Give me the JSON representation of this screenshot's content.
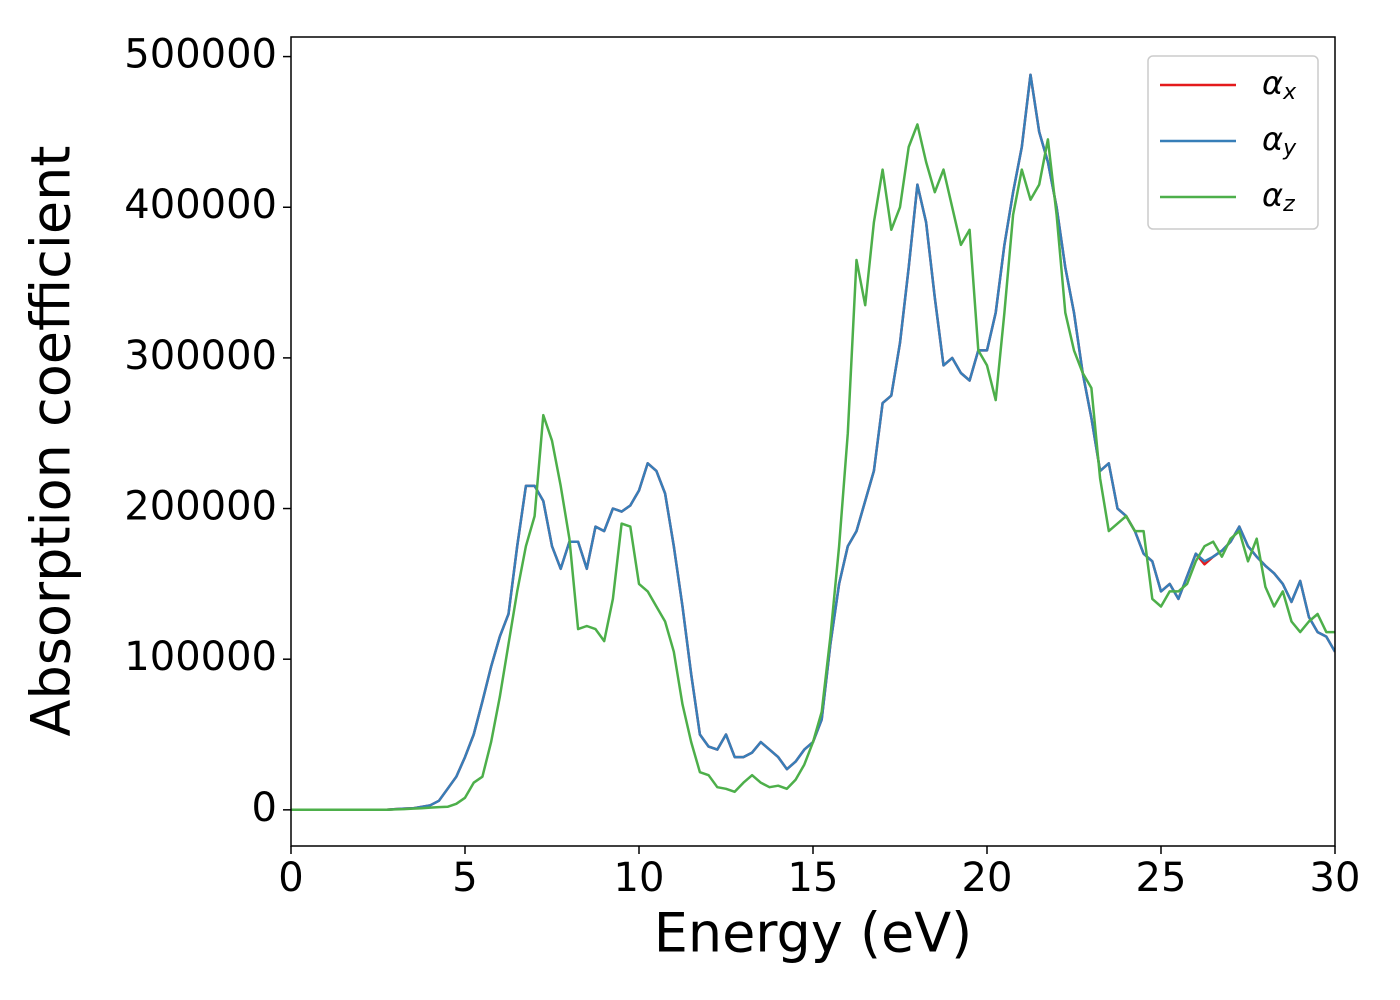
{
  "chart_data": {
    "type": "line",
    "xlabel": "Energy (eV)",
    "ylabel": "Absorption coefficient",
    "x": [
      0,
      0.25,
      0.5,
      0.75,
      1,
      1.25,
      1.5,
      1.75,
      2,
      2.25,
      2.5,
      2.75,
      3,
      3.25,
      3.5,
      3.75,
      4,
      4.25,
      4.5,
      4.75,
      5,
      5.25,
      5.5,
      5.75,
      6,
      6.25,
      6.5,
      6.75,
      7,
      7.25,
      7.5,
      7.75,
      8,
      8.25,
      8.5,
      8.75,
      9,
      9.25,
      9.5,
      9.75,
      10,
      10.25,
      10.5,
      10.75,
      11,
      11.25,
      11.5,
      11.75,
      12,
      12.25,
      12.5,
      12.75,
      13,
      13.25,
      13.5,
      13.75,
      14,
      14.25,
      14.5,
      14.75,
      15,
      15.25,
      15.5,
      15.75,
      16,
      16.25,
      16.5,
      16.75,
      17,
      17.25,
      17.5,
      17.75,
      18,
      18.25,
      18.5,
      18.75,
      19,
      19.25,
      19.5,
      19.75,
      20,
      20.25,
      20.5,
      20.75,
      21,
      21.25,
      21.5,
      21.75,
      22,
      22.25,
      22.5,
      22.75,
      23,
      23.25,
      23.5,
      23.75,
      24,
      24.25,
      24.5,
      24.75,
      25,
      25.25,
      25.5,
      25.75,
      26,
      26.25,
      26.5,
      26.75,
      27,
      27.25,
      27.5,
      27.75,
      28,
      28.25,
      28.5,
      28.75,
      29,
      29.25,
      29.5,
      29.75,
      30
    ],
    "series": [
      {
        "name": "αx",
        "color": "#e41a1c",
        "values": [
          0,
          0,
          0,
          0,
          0,
          0,
          0,
          0,
          0,
          0,
          0,
          0,
          500,
          800,
          1000,
          2000,
          3000,
          6000,
          14000,
          22000,
          35000,
          50000,
          72000,
          95000,
          115000,
          130000,
          175000,
          215000,
          215000,
          205000,
          175000,
          160000,
          178000,
          178000,
          160000,
          188000,
          185000,
          200000,
          198000,
          202000,
          212000,
          230000,
          225000,
          210000,
          175000,
          135000,
          90000,
          50000,
          42000,
          40000,
          50000,
          35000,
          35000,
          38000,
          45000,
          40000,
          35000,
          27000,
          32000,
          40000,
          45000,
          60000,
          110000,
          150000,
          175000,
          185000,
          205000,
          225000,
          270000,
          275000,
          310000,
          360000,
          415000,
          390000,
          340000,
          295000,
          300000,
          290000,
          285000,
          305000,
          305000,
          330000,
          375000,
          410000,
          440000,
          488000,
          450000,
          430000,
          400000,
          360000,
          330000,
          290000,
          260000,
          225000,
          230000,
          200000,
          195000,
          185000,
          170000,
          165000,
          145000,
          150000,
          140000,
          155000,
          170000,
          163000,
          168000,
          172000,
          178000,
          188000,
          175000,
          168000,
          162000,
          157000,
          150000,
          138000,
          152000,
          128000,
          118000,
          115000,
          105000
        ]
      },
      {
        "name": "αy",
        "color": "#377eb8",
        "values": [
          0,
          0,
          0,
          0,
          0,
          0,
          0,
          0,
          0,
          0,
          0,
          0,
          500,
          800,
          1000,
          2000,
          3000,
          6000,
          14000,
          22000,
          35000,
          50000,
          72000,
          95000,
          115000,
          130000,
          175000,
          215000,
          215000,
          205000,
          175000,
          160000,
          178000,
          178000,
          160000,
          188000,
          185000,
          200000,
          198000,
          202000,
          212000,
          230000,
          225000,
          210000,
          175000,
          135000,
          90000,
          50000,
          42000,
          40000,
          50000,
          35000,
          35000,
          38000,
          45000,
          40000,
          35000,
          27000,
          32000,
          40000,
          45000,
          60000,
          110000,
          150000,
          175000,
          185000,
          205000,
          225000,
          270000,
          275000,
          310000,
          360000,
          415000,
          390000,
          340000,
          295000,
          300000,
          290000,
          285000,
          305000,
          305000,
          330000,
          375000,
          410000,
          440000,
          488000,
          450000,
          430000,
          400000,
          360000,
          330000,
          290000,
          260000,
          225000,
          230000,
          200000,
          195000,
          185000,
          170000,
          165000,
          145000,
          150000,
          140000,
          155000,
          170000,
          165000,
          168000,
          172000,
          178000,
          188000,
          175000,
          168000,
          162000,
          157000,
          150000,
          138000,
          152000,
          128000,
          118000,
          115000,
          105000
        ]
      },
      {
        "name": "αz",
        "color": "#4daf4a",
        "values": [
          0,
          0,
          0,
          0,
          0,
          0,
          0,
          0,
          0,
          0,
          0,
          0,
          300,
          500,
          800,
          1000,
          1500,
          1800,
          2000,
          4000,
          8000,
          18000,
          22000,
          45000,
          75000,
          110000,
          145000,
          175000,
          195000,
          262000,
          245000,
          215000,
          180000,
          120000,
          122000,
          120000,
          112000,
          140000,
          190000,
          188000,
          150000,
          145000,
          135000,
          125000,
          105000,
          70000,
          45000,
          25000,
          23000,
          15000,
          14000,
          12000,
          18000,
          23000,
          18000,
          15000,
          16000,
          14000,
          20000,
          30000,
          45000,
          65000,
          115000,
          175000,
          250000,
          365000,
          335000,
          390000,
          425000,
          385000,
          400000,
          440000,
          455000,
          430000,
          410000,
          425000,
          400000,
          375000,
          385000,
          305000,
          295000,
          272000,
          330000,
          395000,
          425000,
          405000,
          415000,
          445000,
          395000,
          330000,
          305000,
          290000,
          280000,
          220000,
          185000,
          190000,
          195000,
          185000,
          185000,
          140000,
          135000,
          145000,
          145000,
          150000,
          165000,
          175000,
          178000,
          168000,
          180000,
          185000,
          165000,
          180000,
          148000,
          135000,
          145000,
          125000,
          118000,
          125000,
          130000,
          118000,
          118000
        ]
      }
    ],
    "xlim": [
      0,
      30
    ],
    "xticks": [
      0,
      5,
      10,
      15,
      20,
      25,
      30
    ],
    "ylim": [
      -24000,
      513000
    ],
    "yticks": [
      0,
      100000,
      200000,
      300000,
      400000,
      500000
    ],
    "grid": false,
    "legend": "upper right"
  }
}
